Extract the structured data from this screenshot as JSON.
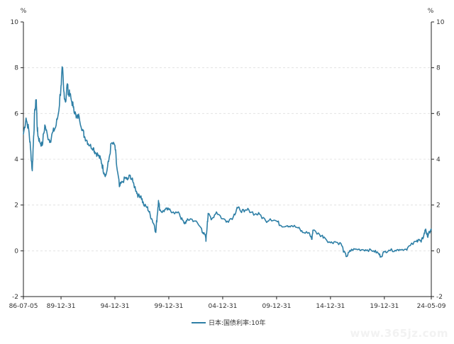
{
  "chart_data": {
    "type": "line",
    "title": "",
    "unit_label_left": "%",
    "unit_label_right": "%",
    "xlabel": "",
    "ylabel": "",
    "ylim": [
      -2,
      10
    ],
    "y_ticks": [
      -2,
      0,
      2,
      4,
      6,
      8,
      10
    ],
    "x_tick_labels": [
      "86-07-05",
      "89-12-31",
      "94-12-31",
      "99-12-31",
      "04-12-31",
      "09-12-31",
      "14-12-31",
      "19-12-31",
      "24-05-09"
    ],
    "x_tick_dates": [
      "1986-07-05",
      "1989-12-31",
      "1994-12-31",
      "1999-12-31",
      "2004-12-31",
      "2009-12-31",
      "2014-12-31",
      "2019-12-31",
      "2024-05-09"
    ],
    "grid": true,
    "legend_position": "bottom-center",
    "series": [
      {
        "name": "日本:国债利率:10年",
        "color": "#2e7fa6",
        "x": [
          "1986-07-05",
          "1986-10-01",
          "1987-01-01",
          "1987-03-01",
          "1987-05-01",
          "1987-06-15",
          "1987-08-01",
          "1987-09-15",
          "1987-10-15",
          "1987-11-15",
          "1988-01-01",
          "1988-04-01",
          "1988-07-01",
          "1988-10-01",
          "1989-01-01",
          "1989-04-01",
          "1989-07-01",
          "1989-10-01",
          "1989-12-31",
          "1990-02-15",
          "1990-04-01",
          "1990-06-01",
          "1990-08-01",
          "1990-09-15",
          "1990-10-15",
          "1990-12-31",
          "1991-03-01",
          "1991-06-01",
          "1991-09-01",
          "1991-12-31",
          "1992-03-01",
          "1992-06-01",
          "1992-09-01",
          "1992-12-31",
          "1993-03-01",
          "1993-06-01",
          "1993-09-01",
          "1993-10-15",
          "1993-12-31",
          "1994-03-01",
          "1994-06-01",
          "1994-09-01",
          "1994-12-31",
          "1995-03-01",
          "1995-06-01",
          "1995-09-01",
          "1995-12-31",
          "1996-03-01",
          "1996-06-01",
          "1996-09-01",
          "1996-12-31",
          "1997-03-01",
          "1997-06-01",
          "1997-09-01",
          "1997-12-31",
          "1998-03-01",
          "1998-06-01",
          "1998-09-01",
          "1998-10-15",
          "1998-12-01",
          "1999-01-15",
          "1999-03-01",
          "1999-06-01",
          "1999-09-01",
          "1999-12-31",
          "2000-06-01",
          "2000-12-31",
          "2001-03-01",
          "2001-06-01",
          "2001-09-01",
          "2001-12-31",
          "2002-06-01",
          "2002-12-31",
          "2003-03-01",
          "2003-06-01",
          "2003-06-15",
          "2003-08-01",
          "2003-09-01",
          "2003-12-31",
          "2004-06-01",
          "2004-12-31",
          "2005-06-01",
          "2005-12-31",
          "2006-05-01",
          "2006-08-01",
          "2006-12-31",
          "2007-06-01",
          "2007-12-31",
          "2008-06-01",
          "2008-12-31",
          "2009-06-01",
          "2009-12-31",
          "2010-06-01",
          "2010-12-31",
          "2011-06-01",
          "2011-12-31",
          "2012-06-01",
          "2012-12-31",
          "2013-04-05",
          "2013-05-15",
          "2013-12-31",
          "2014-06-01",
          "2014-12-31",
          "2015-06-01",
          "2015-12-31",
          "2016-04-01",
          "2016-07-01",
          "2016-10-01",
          "2016-12-31",
          "2017-06-01",
          "2017-12-31",
          "2018-06-01",
          "2018-12-31",
          "2019-06-01",
          "2019-09-01",
          "2019-12-31",
          "2020-06-01",
          "2020-12-31",
          "2021-06-01",
          "2021-12-31",
          "2022-06-01",
          "2022-12-31",
          "2023-03-01",
          "2023-06-01",
          "2023-09-01",
          "2023-11-01",
          "2023-12-31",
          "2024-02-01",
          "2024-04-01",
          "2024-05-09"
        ],
        "values": [
          5.1,
          5.8,
          5.3,
          4.5,
          3.5,
          5.0,
          6.2,
          6.6,
          5.4,
          5.0,
          4.8,
          4.6,
          5.5,
          5.0,
          4.8,
          5.2,
          5.4,
          6.0,
          7.2,
          8.0,
          7.0,
          6.5,
          7.3,
          6.8,
          6.9,
          6.5,
          6.3,
          5.8,
          5.9,
          5.3,
          5.0,
          4.8,
          4.6,
          4.5,
          4.3,
          4.2,
          4.0,
          3.8,
          3.4,
          3.3,
          3.9,
          4.7,
          4.6,
          3.7,
          2.8,
          3.0,
          3.2,
          3.1,
          3.3,
          3.0,
          2.6,
          2.4,
          2.4,
          2.0,
          1.9,
          1.7,
          1.4,
          1.1,
          0.8,
          1.5,
          2.2,
          1.8,
          1.7,
          1.8,
          1.8,
          1.7,
          1.6,
          1.4,
          1.2,
          1.3,
          1.4,
          1.3,
          1.0,
          0.8,
          0.6,
          0.45,
          1.3,
          1.6,
          1.4,
          1.7,
          1.4,
          1.3,
          1.5,
          1.9,
          1.8,
          1.7,
          1.8,
          1.6,
          1.6,
          1.3,
          1.4,
          1.3,
          1.1,
          1.1,
          1.1,
          1.0,
          0.8,
          0.8,
          0.5,
          0.9,
          0.7,
          0.6,
          0.35,
          0.4,
          0.3,
          -0.05,
          -0.25,
          -0.05,
          0.05,
          0.07,
          0.05,
          0.04,
          0.0,
          -0.1,
          -0.25,
          -0.05,
          0.03,
          0.02,
          0.06,
          0.07,
          0.23,
          0.42,
          0.5,
          0.38,
          0.7,
          0.95,
          0.62,
          0.72,
          0.85,
          0.92
        ]
      }
    ]
  }
}
